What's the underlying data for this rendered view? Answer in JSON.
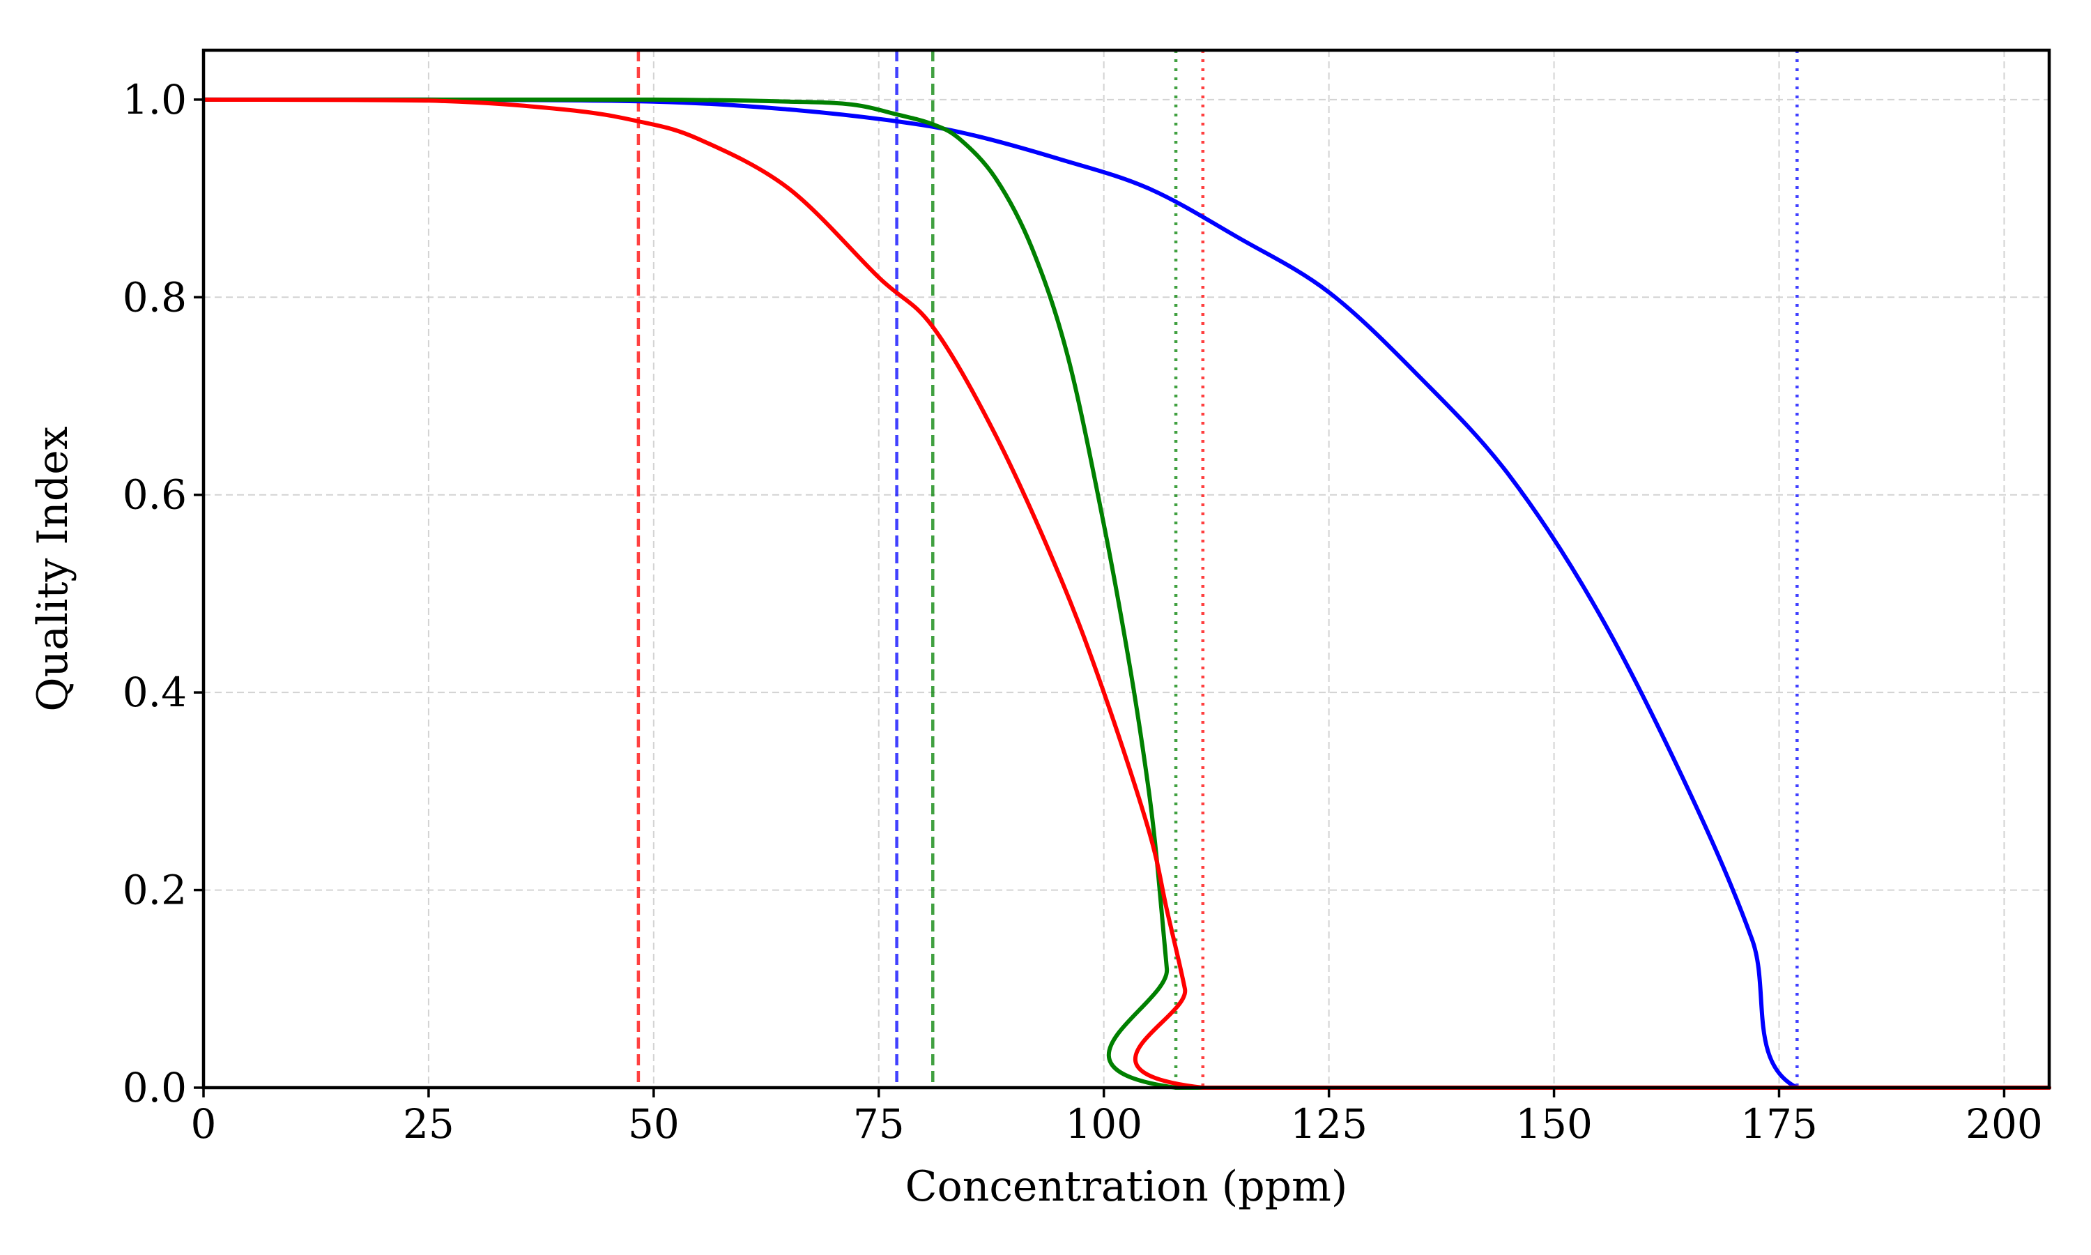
{
  "chart_data": {
    "type": "line",
    "title": "",
    "xlabel": "Concentration (ppm)",
    "ylabel": "Quality Index",
    "xlim": [
      0,
      205
    ],
    "ylim": [
      0,
      1.05
    ],
    "xticks": [
      0,
      25,
      50,
      75,
      100,
      125,
      150,
      175,
      200
    ],
    "yticks": [
      0.0,
      0.2,
      0.4,
      0.6,
      0.8,
      1.0
    ],
    "xtick_labels": [
      "0",
      "25",
      "50",
      "75",
      "100",
      "125",
      "150",
      "175",
      "200"
    ],
    "ytick_labels": [
      "0.0",
      "0.2",
      "0.4",
      "0.6",
      "0.8",
      "1.0"
    ],
    "grid": true,
    "legend": "none",
    "series": [
      {
        "color": "#0000ff",
        "x": [
          0,
          25,
          50,
          65,
          77,
          85,
          95,
          105,
          115,
          125,
          135,
          145,
          155,
          165,
          172,
          177,
          205
        ],
        "y": [
          1.0,
          1.0,
          0.998,
          0.99,
          0.978,
          0.965,
          0.94,
          0.91,
          0.86,
          0.805,
          0.72,
          0.62,
          0.48,
          0.3,
          0.15,
          0.0,
          0.0
        ]
      },
      {
        "color": "#008000",
        "x": [
          0,
          25,
          50,
          65,
          72,
          77,
          81,
          84,
          88,
          92,
          96,
          100,
          103,
          105,
          106,
          107,
          108,
          205
        ],
        "y": [
          1.0,
          1.0,
          1.0,
          0.998,
          0.995,
          0.985,
          0.975,
          0.96,
          0.92,
          0.85,
          0.74,
          0.57,
          0.42,
          0.3,
          0.22,
          0.12,
          0.0,
          0.0
        ]
      },
      {
        "color": "#ff0000",
        "x": [
          0,
          25,
          40,
          48.3,
          55,
          65,
          75,
          81,
          88,
          95,
          100,
          105,
          107,
          109,
          111,
          205
        ],
        "y": [
          1.0,
          0.999,
          0.99,
          0.978,
          0.96,
          0.91,
          0.82,
          0.77,
          0.66,
          0.52,
          0.4,
          0.26,
          0.18,
          0.1,
          0.0,
          0.0
        ]
      }
    ],
    "reference_lines": [
      {
        "x": 48.3,
        "color": "#ff0000",
        "style": "dashed"
      },
      {
        "x": 77,
        "color": "#0000ff",
        "style": "dashed"
      },
      {
        "x": 81,
        "color": "#008000",
        "style": "dashed"
      },
      {
        "x": 108,
        "color": "#008000",
        "style": "dotted"
      },
      {
        "x": 111,
        "color": "#ff0000",
        "style": "dotted"
      },
      {
        "x": 177,
        "color": "#0000ff",
        "style": "dotted"
      }
    ]
  }
}
